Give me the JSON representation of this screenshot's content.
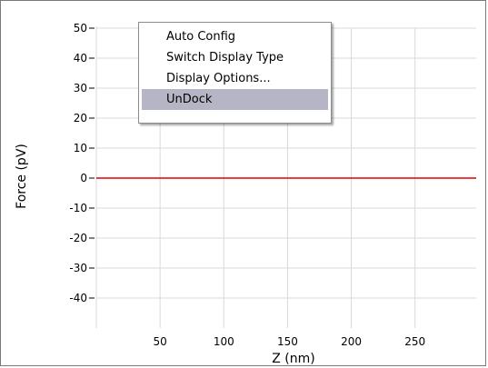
{
  "chart_data": {
    "type": "line",
    "title": "",
    "xlabel": "Z (nm)",
    "ylabel": "Force (pV)",
    "xlim": [
      0,
      298
    ],
    "ylim": [
      -50,
      50
    ],
    "x_ticks": [
      50,
      100,
      150,
      200,
      250
    ],
    "y_ticks": [
      50,
      40,
      30,
      20,
      10,
      0,
      -10,
      -20,
      -30,
      -40
    ],
    "grid": true,
    "series": [
      {
        "color": "#e00000",
        "x": [
          0,
          298
        ],
        "y": [
          0,
          0
        ]
      }
    ]
  },
  "context_menu": {
    "items": [
      {
        "label": "Auto Config",
        "highlighted": false
      },
      {
        "label": "Switch Display Type",
        "highlighted": false
      },
      {
        "label": "Display Options...",
        "highlighted": false
      },
      {
        "label": "UnDock",
        "highlighted": true
      }
    ]
  },
  "colors": {
    "grid": "#d9d9d9",
    "menu_highlight": "#b5b5c5"
  }
}
